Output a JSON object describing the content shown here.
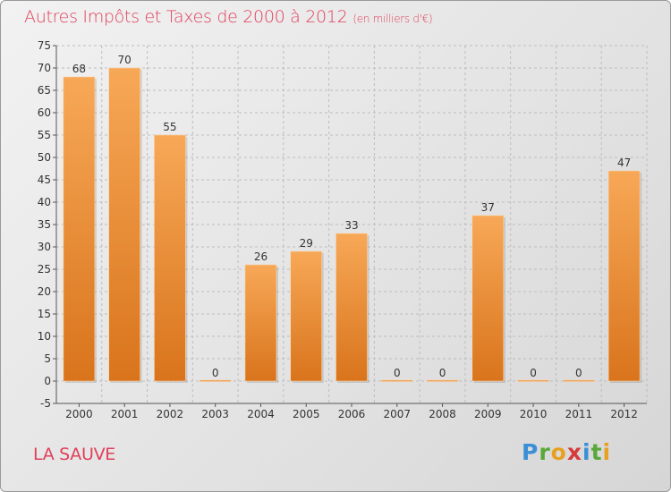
{
  "header": {
    "title": "Autres Impôts et Taxes de 2000 à 2012",
    "unit": "(en milliers d'€)"
  },
  "footer": {
    "commune": "LA SAUVE",
    "logo_letters": [
      "P",
      "r",
      "o",
      "x",
      "i",
      "t",
      "i"
    ],
    "logo_colors": [
      "#3a8fd6",
      "#5aa83a",
      "#e8a020",
      "#d63a3a",
      "#3a8fd6",
      "#5aa83a",
      "#e8a020"
    ]
  },
  "colors": {
    "accent": "#e0405a",
    "bar_top": "#f7a857",
    "bar_bottom": "#d9741c",
    "grid": "#bdbdbd"
  },
  "chart_data": {
    "type": "bar",
    "title": "Autres Impôts et Taxes de 2000 à 2012",
    "subtitle": "(en milliers d'€)",
    "categories": [
      "2000",
      "2001",
      "2002",
      "2003",
      "2004",
      "2005",
      "2006",
      "2007",
      "2008",
      "2009",
      "2010",
      "2011",
      "2012"
    ],
    "values": [
      68,
      70,
      55,
      0,
      26,
      29,
      33,
      0,
      0,
      37,
      0,
      0,
      47
    ],
    "ylim": [
      -5,
      75
    ],
    "yticks": [
      -5,
      0,
      5,
      10,
      15,
      20,
      25,
      30,
      35,
      40,
      45,
      50,
      55,
      60,
      65,
      70,
      75
    ],
    "grid": true,
    "data_labels": true
  }
}
